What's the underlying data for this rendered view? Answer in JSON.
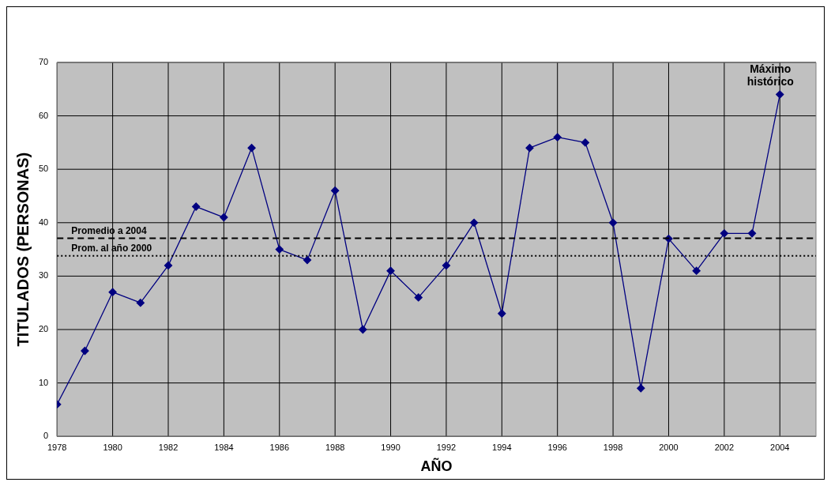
{
  "chart_data": {
    "type": "line",
    "xlabel": "AÑO",
    "ylabel": "TITULADOS (PERSONAS)",
    "x": [
      1978,
      1979,
      1980,
      1981,
      1982,
      1983,
      1984,
      1985,
      1986,
      1987,
      1988,
      1989,
      1990,
      1991,
      1992,
      1993,
      1994,
      1995,
      1996,
      1997,
      1998,
      1999,
      2000,
      2001,
      2002,
      2003,
      2004
    ],
    "series": [
      {
        "color": "#000080",
        "values": [
          6,
          16,
          27,
          25,
          32,
          43,
          41,
          54,
          35,
          33,
          46,
          20,
          31,
          26,
          32,
          40,
          23,
          54,
          56,
          55,
          40,
          9,
          37,
          31,
          38,
          38,
          64
        ]
      }
    ],
    "xlim": [
      1978,
      2005.3
    ],
    "xticks": [
      1978,
      1980,
      1982,
      1984,
      1986,
      1988,
      1990,
      1992,
      1994,
      1996,
      1998,
      2000,
      2002,
      2004
    ],
    "ylim": [
      0,
      70
    ],
    "yticks": [
      0,
      10,
      20,
      30,
      40,
      50,
      60,
      70
    ],
    "grid": true,
    "legend": false,
    "marker": "diamond",
    "line_style": "solid",
    "ref_lines": [
      {
        "axis": "y",
        "value": 37.1,
        "label": "Promedio a 2004",
        "line_style": "dashed",
        "color": "#000000"
      },
      {
        "axis": "y",
        "value": 33.8,
        "label": "Prom. al año 2000",
        "line_style": "dotted",
        "color": "#000000"
      }
    ],
    "annotations": [
      {
        "text": "Máximo histórico",
        "x": 2004,
        "y": 64
      }
    ]
  }
}
